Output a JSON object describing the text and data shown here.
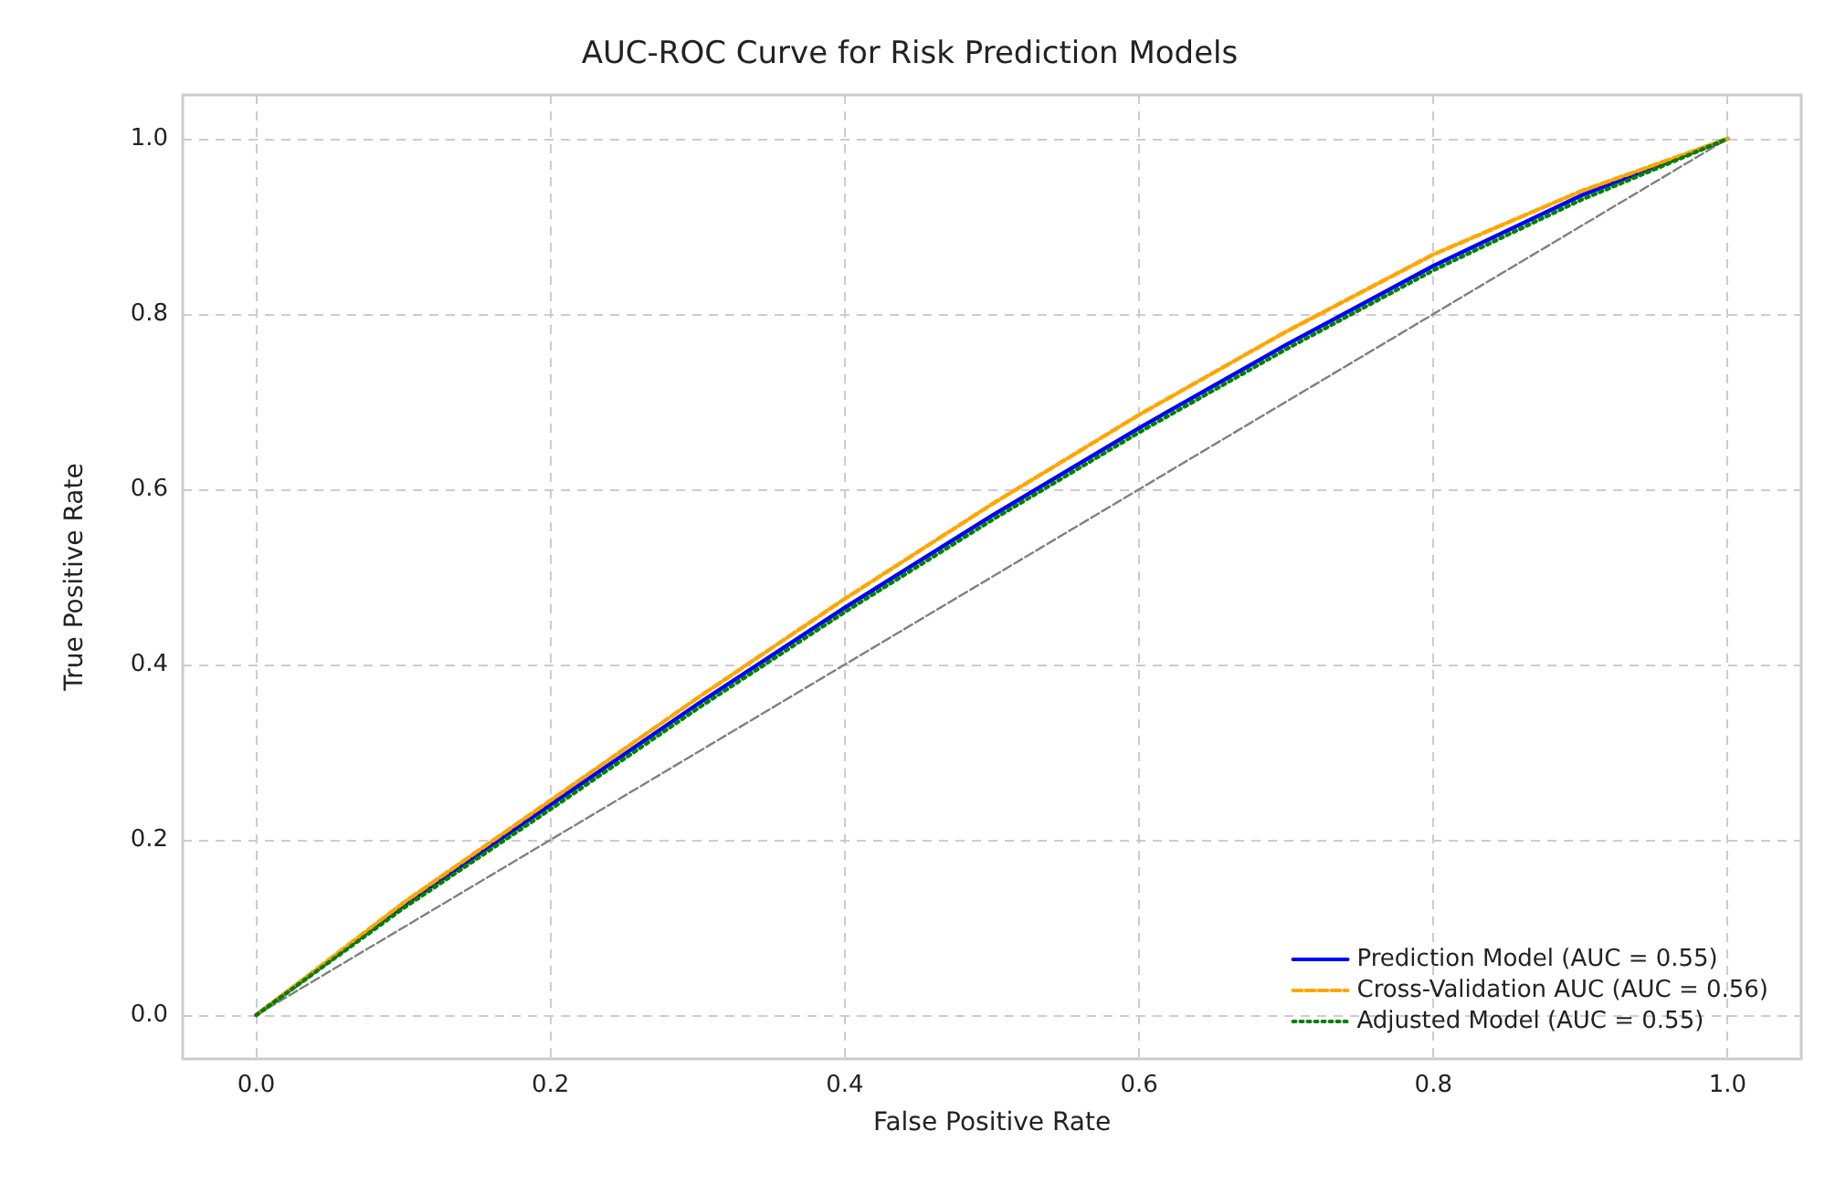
{
  "chart_data": {
    "type": "line",
    "title": "AUC-ROC Curve for Risk Prediction Models",
    "xlabel": "False Positive Rate",
    "ylabel": "True Positive Rate",
    "x": [
      0,
      0.1,
      0.2,
      0.3,
      0.4,
      0.5,
      0.6,
      0.7,
      0.8,
      0.9,
      1
    ],
    "series": [
      {
        "name": "Prediction Model (AUC = 0.55)",
        "color": "#0000ff",
        "line_style": "solid",
        "values": [
          0,
          0.125,
          0.24,
          0.355,
          0.465,
          0.57,
          0.67,
          0.765,
          0.855,
          0.935,
          1
        ]
      },
      {
        "name": "Cross-Validation AUC (AUC = 0.56)",
        "color": "#ffa500",
        "line_style": "dashed",
        "values": [
          0,
          0.128,
          0.245,
          0.362,
          0.475,
          0.583,
          0.685,
          0.78,
          0.868,
          0.94,
          1
        ]
      },
      {
        "name": "Adjusted Model (AUC = 0.55)",
        "color": "#008000",
        "line_style": "dotted",
        "values": [
          0,
          0.122,
          0.235,
          0.35,
          0.46,
          0.565,
          0.665,
          0.76,
          0.85,
          0.93,
          1
        ]
      },
      {
        "color": "#808080",
        "line_style": "dashed",
        "x": [
          0,
          1
        ],
        "values": [
          0,
          1
        ]
      }
    ],
    "xlim": [
      -0.05,
      1.05
    ],
    "ylim": [
      -0.05,
      1.05
    ],
    "xticks": [
      {
        "value": 0,
        "label": "0.0"
      },
      {
        "value": 0.2,
        "label": "0.2"
      },
      {
        "value": 0.4,
        "label": "0.4"
      },
      {
        "value": 0.6,
        "label": "0.6"
      },
      {
        "value": 0.8,
        "label": "0.8"
      },
      {
        "value": 1,
        "label": "1.0"
      }
    ],
    "yticks": [
      {
        "value": 0,
        "label": "0.0"
      },
      {
        "value": 0.2,
        "label": "0.2"
      },
      {
        "value": 0.4,
        "label": "0.4"
      },
      {
        "value": 0.6,
        "label": "0.6"
      },
      {
        "value": 0.8,
        "label": "0.8"
      },
      {
        "value": 1,
        "label": "1.0"
      }
    ],
    "grid": true,
    "legend": "bottom right",
    "marker": "none"
  }
}
